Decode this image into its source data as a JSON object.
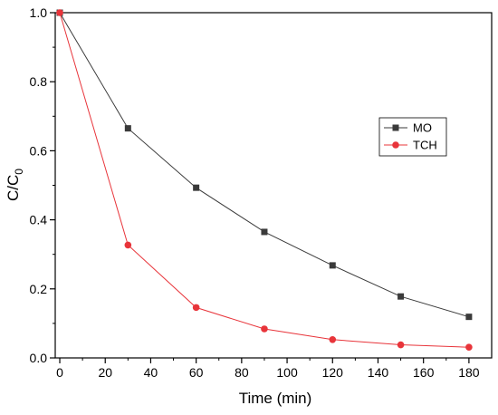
{
  "chart_data": {
    "type": "line",
    "x": [
      0,
      30,
      60,
      90,
      120,
      150,
      180
    ],
    "series": [
      {
        "name": "MO",
        "values": [
          1.0,
          0.665,
          0.493,
          0.365,
          0.268,
          0.178,
          0.119
        ],
        "color": "#3a3a3a",
        "marker": "square"
      },
      {
        "name": "TCH",
        "values": [
          1.0,
          0.327,
          0.146,
          0.084,
          0.053,
          0.038,
          0.031
        ],
        "color": "#e8343a",
        "marker": "circle"
      }
    ],
    "xlabel": "Time (min)",
    "ylabel_main": "C/C",
    "ylabel_sub": "0",
    "xlim": [
      -2,
      190
    ],
    "ylim": [
      0,
      1.0
    ],
    "xticks": [
      0,
      20,
      40,
      60,
      80,
      100,
      120,
      140,
      160,
      180
    ],
    "xtick_labels": [
      "0",
      "20",
      "40",
      "60",
      "80",
      "100",
      "120",
      "140",
      "160",
      "180"
    ],
    "yticks": [
      0.0,
      0.2,
      0.4,
      0.6,
      0.8,
      1.0
    ],
    "ytick_labels": [
      "0.0",
      "0.2",
      "0.4",
      "0.6",
      "0.8",
      "1.0"
    ],
    "grid": false,
    "legend_position": "right"
  }
}
